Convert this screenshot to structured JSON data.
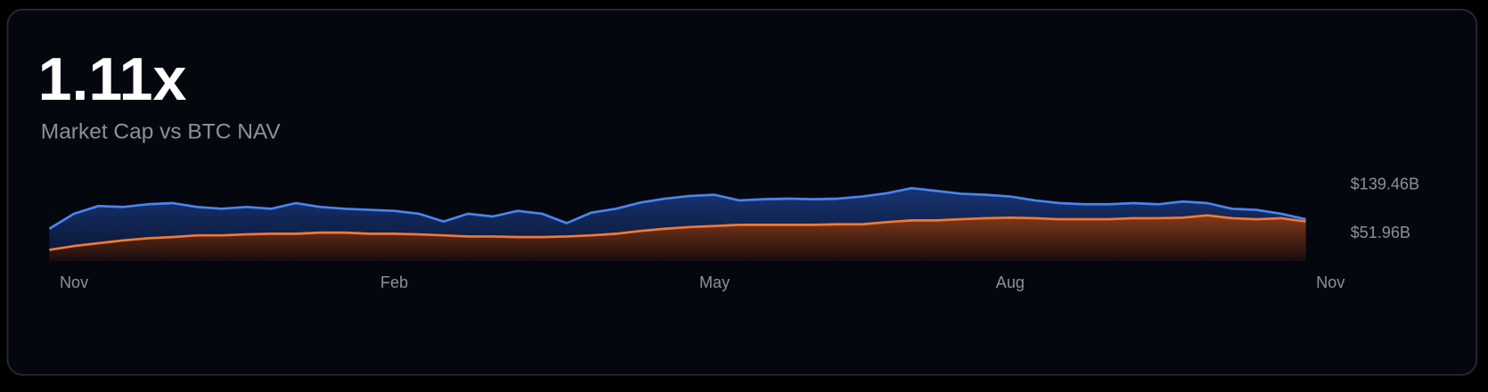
{
  "chart_data": {
    "type": "area",
    "title": "1.11x",
    "subtitle": "Market Cap vs BTC NAV",
    "categories": [
      null,
      "Nov",
      null,
      null,
      null,
      null,
      null,
      null,
      null,
      null,
      null,
      null,
      null,
      null,
      "Feb",
      null,
      null,
      null,
      null,
      null,
      null,
      null,
      null,
      null,
      null,
      null,
      null,
      "May",
      null,
      null,
      null,
      null,
      null,
      null,
      null,
      null,
      null,
      null,
      null,
      "Aug",
      null,
      null,
      null,
      null,
      null,
      null,
      null,
      null,
      null,
      null,
      null,
      null,
      "Nov"
    ],
    "series": [
      {
        "name": "Market Cap",
        "color": "#4a84f2",
        "fill": "#12306a",
        "values": [
          58,
          85,
          99,
          97,
          102,
          104,
          97,
          94,
          97,
          94,
          104,
          97,
          94,
          92,
          90,
          85,
          71,
          85,
          80,
          90,
          85,
          68,
          87,
          94,
          105,
          112,
          117,
          119,
          109,
          111,
          112,
          111,
          112,
          116,
          122,
          131,
          126,
          121,
          119,
          116,
          109,
          104,
          102,
          102,
          104,
          102,
          107,
          104,
          94,
          92,
          85,
          75,
          null
        ]
      },
      {
        "name": "BTC NAV",
        "color": "#f07a35",
        "fill": "#6a2e14",
        "values": [
          20,
          27,
          32,
          37,
          41,
          43,
          46,
          46,
          48,
          49,
          49,
          51,
          51,
          49,
          49,
          48,
          46,
          44,
          44,
          43,
          43,
          44,
          46,
          49,
          54,
          58,
          61,
          63,
          65,
          65,
          65,
          65,
          66,
          66,
          70,
          73,
          73,
          75,
          77,
          78,
          77,
          75,
          75,
          75,
          77,
          77,
          78,
          82,
          77,
          75,
          77,
          71,
          null
        ]
      }
    ],
    "ylim": [
      0,
      145
    ],
    "yticks": [
      {
        "value": 139.46,
        "label": "$139.46B"
      },
      {
        "value": 51.96,
        "label": "$51.96B"
      }
    ]
  }
}
